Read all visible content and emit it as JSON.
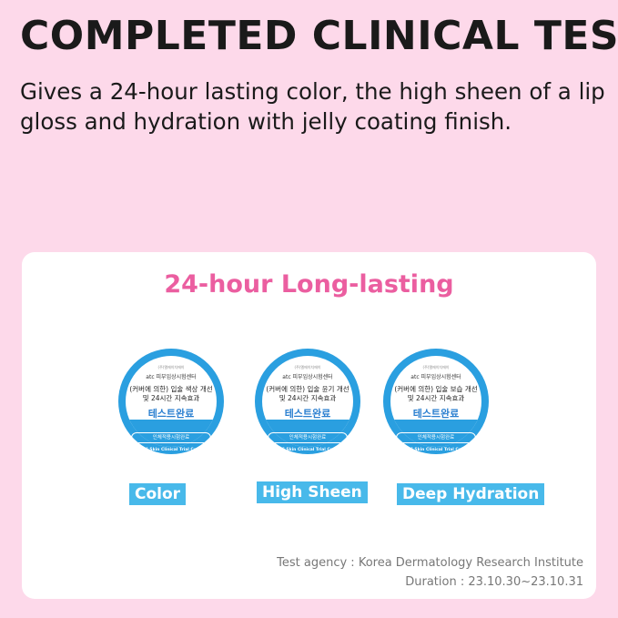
{
  "title": "COMPLETED CLINICAL TEST",
  "subtitle": "Gives a 24-hour lasting color, the high sheen of a lip gloss and hydration with jelly coating finish.",
  "card": {
    "title": "24-hour Long-lasting",
    "badges": [
      {
        "top": "(주)엘에이치에이",
        "center": "atc 피부임상시험센터",
        "line1": "(커버에 의한) 입술 색상 개선",
        "line2": "및 24시간 지속효과",
        "done": "테스트완료",
        "pill": "인체적용시험완료",
        "ring": "OATC Skin Clinical Trial Center",
        "label": "Color"
      },
      {
        "top": "(주)엘에이치에이",
        "center": "atc 피부임상시험센터",
        "line1": "(커버에 의한) 입술 윤기 개선",
        "line2": "및 24시간 지속효과",
        "done": "테스트완료",
        "pill": "인체적용시험완료",
        "ring": "OATC Skin Clinical Trial Center",
        "label": "High Sheen"
      },
      {
        "top": "(주)엘에이치에이",
        "center": "atc 피부임상시험센터",
        "line1": "(커버에 의한) 입술 보습 개선",
        "line2": "및 24시간 지속효과",
        "done": "테스트완료",
        "pill": "인체적용시험완료",
        "ring": "OATC Skin Clinical Trial Center",
        "label": "Deep Hydration"
      }
    ],
    "agency": "Test agency : Korea Dermatology Research Institute",
    "duration": "Duration : 23.10.30~23.10.31"
  },
  "colors": {
    "background": "#fdd9ea",
    "accent": "#eb5ea0",
    "badge": "#2a9fe0",
    "label": "#48b9ea"
  }
}
